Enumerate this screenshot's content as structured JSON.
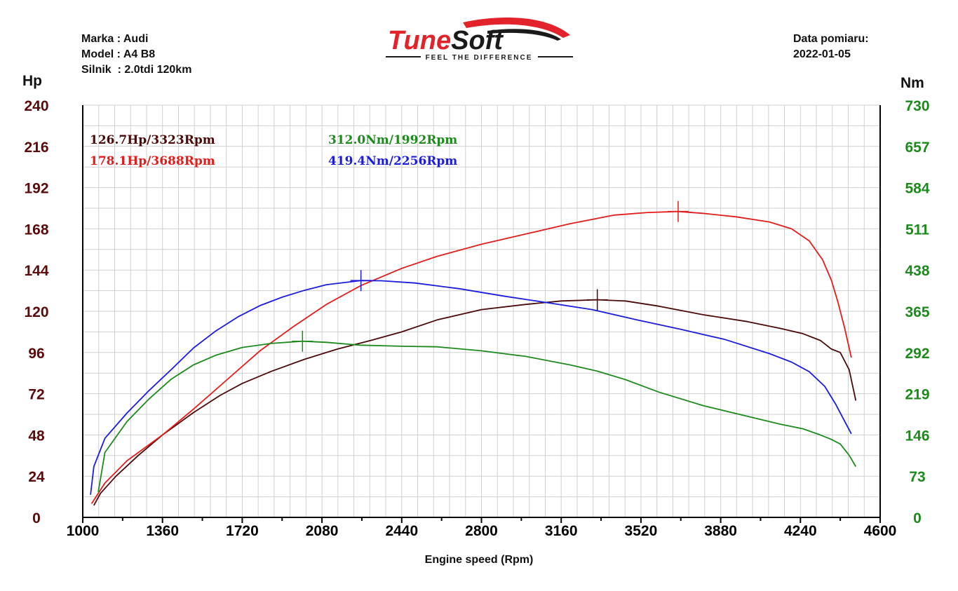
{
  "header": {
    "make_label": "Marka",
    "make_value": "Audi",
    "model_label": "Model",
    "model_value": "A4 B8",
    "engine_label": "Silnik",
    "engine_value": "2.0tdi 120km",
    "date_label": "Data pomiaru:",
    "date_value": "2022-01-05"
  },
  "logo": {
    "brand_part1": "Tune",
    "brand_part2": "Soft",
    "tagline": "FEEL THE DIFFERENCE",
    "colors": {
      "red": "#e2232b",
      "dark": "#1a1a1a"
    }
  },
  "chart_data": {
    "type": "line",
    "xlabel": "Engine speed (Rpm)",
    "ylabel_left": "Hp",
    "ylabel_right": "Nm",
    "xlim": [
      1000,
      4600
    ],
    "ylim_left": [
      0,
      240
    ],
    "ylim_right": [
      0,
      730
    ],
    "x_ticks": [
      "1000",
      "1360",
      "1720",
      "2080",
      "2440",
      "2800",
      "3160",
      "3520",
      "3880",
      "4240",
      "4600"
    ],
    "y_ticks_left": [
      "0",
      "24",
      "48",
      "72",
      "96",
      "120",
      "144",
      "168",
      "192",
      "216",
      "240"
    ],
    "y_ticks_right": [
      "0",
      "73",
      "146",
      "219",
      "292",
      "365",
      "438",
      "511",
      "584",
      "657",
      "730"
    ],
    "grid": true,
    "colors": {
      "left_axis": "#5a0a0a",
      "right_axis": "#1e8a1e"
    },
    "peak_labels": [
      {
        "text": "126.7Hp/3323Rpm",
        "color": "#4a0a0a"
      },
      {
        "text": "178.1Hp/3688Rpm",
        "color": "#e31c1c"
      },
      {
        "text": "312.0Nm/1992Rpm",
        "color": "#1e8a1e"
      },
      {
        "text": "419.4Nm/2256Rpm",
        "color": "#1c1ce0"
      }
    ],
    "series": [
      {
        "id": "power_stock",
        "axis": "left",
        "color": "#4a0a0a",
        "peak": {
          "x": 3323,
          "y": 126.7
        },
        "x": [
          1050,
          1080,
          1150,
          1250,
          1360,
          1500,
          1620,
          1720,
          1850,
          2000,
          2150,
          2300,
          2440,
          2600,
          2800,
          3000,
          3160,
          3323,
          3450,
          3600,
          3800,
          4000,
          4150,
          4250,
          4330,
          4380,
          4420,
          4460,
          4490
        ],
        "y": [
          7,
          14,
          24,
          36,
          48,
          61,
          71,
          78,
          85,
          92,
          98,
          103,
          108,
          115,
          121,
          124,
          126,
          126.7,
          126,
          123,
          118,
          114,
          110,
          107,
          103,
          98,
          96,
          86,
          68
        ]
      },
      {
        "id": "power_tuned",
        "axis": "left",
        "color": "#e31c1c",
        "peak": {
          "x": 3688,
          "y": 178.1
        },
        "x": [
          1040,
          1100,
          1200,
          1360,
          1500,
          1650,
          1800,
          1950,
          2100,
          2256,
          2440,
          2600,
          2800,
          3000,
          3200,
          3400,
          3550,
          3688,
          3800,
          3950,
          4100,
          4200,
          4280,
          4340,
          4380,
          4410,
          4440,
          4470
        ],
        "y": [
          8,
          20,
          33,
          48,
          63,
          80,
          97,
          111,
          124,
          135,
          145,
          152,
          159,
          165,
          171,
          176,
          177.5,
          178.1,
          177,
          175,
          172,
          168,
          161,
          150,
          138,
          125,
          110,
          93
        ]
      },
      {
        "id": "torque_stock",
        "axis": "right",
        "color": "#1e8a1e",
        "peak": {
          "x": 1992,
          "y": 312.0
        },
        "x": [
          1070,
          1100,
          1200,
          1300,
          1400,
          1500,
          1600,
          1720,
          1850,
          1992,
          2100,
          2250,
          2440,
          2600,
          2800,
          3000,
          3200,
          3323,
          3450,
          3600,
          3800,
          4000,
          4150,
          4250,
          4330,
          4380,
          4420,
          4460,
          4490
        ],
        "y": [
          45,
          115,
          170,
          210,
          245,
          270,
          287,
          301,
          308,
          312,
          310,
          305,
          303,
          302,
          295,
          285,
          270,
          259,
          244,
          222,
          198,
          179,
          165,
          157,
          146,
          138,
          130,
          110,
          90
        ]
      },
      {
        "id": "torque_tuned",
        "axis": "right",
        "color": "#1c1ce0",
        "peak": {
          "x": 2256,
          "y": 419.4
        },
        "x": [
          1035,
          1050,
          1100,
          1200,
          1300,
          1400,
          1500,
          1600,
          1700,
          1800,
          1900,
          2000,
          2100,
          2256,
          2350,
          2500,
          2700,
          2900,
          3100,
          3300,
          3500,
          3700,
          3900,
          4100,
          4200,
          4280,
          4350,
          4400,
          4440,
          4470
        ],
        "y": [
          40,
          90,
          140,
          185,
          225,
          262,
          300,
          330,
          355,
          375,
          390,
          402,
          412,
          419.4,
          419,
          415,
          405,
          392,
          380,
          368,
          350,
          333,
          315,
          290,
          275,
          258,
          232,
          200,
          170,
          148
        ]
      }
    ]
  }
}
